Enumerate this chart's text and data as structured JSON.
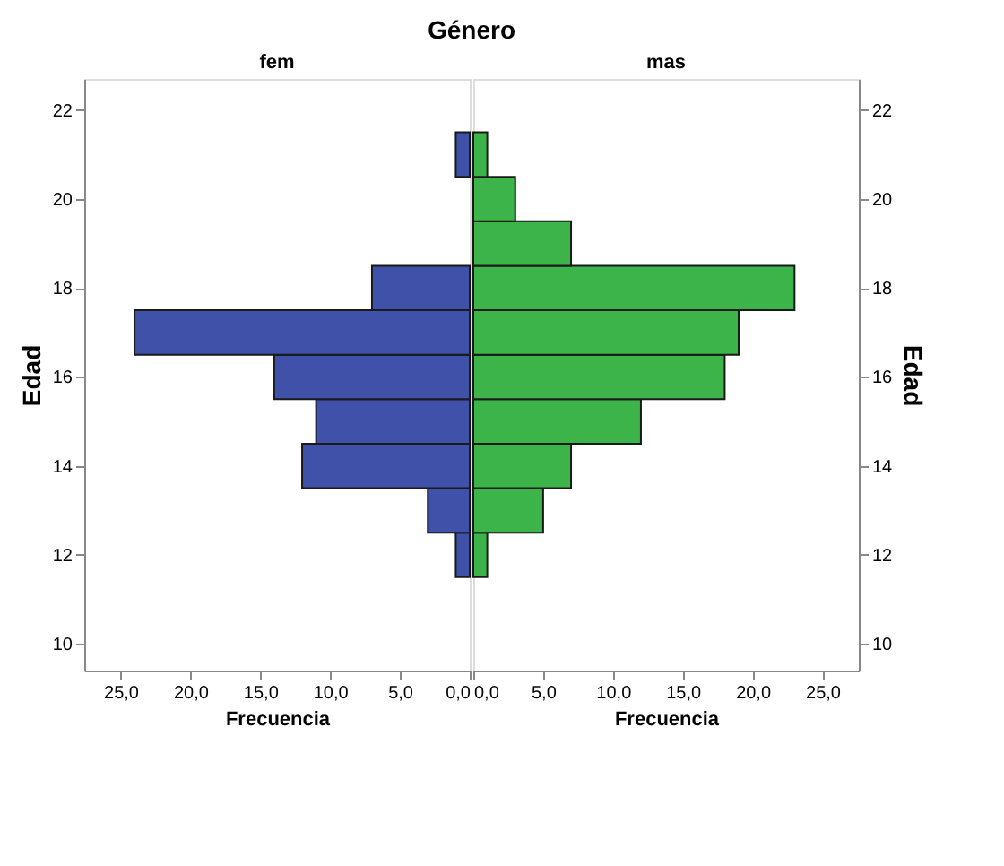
{
  "chart_data": [
    {
      "type": "histogram",
      "orientation": "horizontal",
      "title": "Género",
      "subtitle": "fem",
      "xlabel": "Frecuencia",
      "ylabel": "Edad",
      "bins": [
        11.5,
        12.5,
        13.5,
        14.5,
        15.5,
        16.5,
        17.5,
        18.5,
        19.5,
        20.5,
        21.5
      ],
      "values": [
        1,
        3,
        12,
        11,
        14,
        24,
        7,
        0,
        0,
        1
      ],
      "color": "#3f51a8",
      "xlim": [
        27.6,
        0
      ],
      "xticks": [
        {
          "value": 0,
          "label": "0,0"
        },
        {
          "value": 5,
          "label": "5,0"
        },
        {
          "value": 10,
          "label": "10,0"
        },
        {
          "value": 15,
          "label": "15,0"
        },
        {
          "value": 20,
          "label": "20,0"
        },
        {
          "value": 25,
          "label": "25,0"
        }
      ],
      "ylim": [
        9.4,
        22.7
      ],
      "yticks": [
        10,
        12,
        14,
        16,
        18,
        20,
        22
      ],
      "grid": false
    },
    {
      "type": "histogram",
      "orientation": "horizontal",
      "subtitle": "mas",
      "xlabel": "Frecuencia",
      "ylabel": "Edad",
      "bins": [
        11.5,
        12.5,
        13.5,
        14.5,
        15.5,
        16.5,
        17.5,
        18.5,
        19.5,
        20.5,
        21.5
      ],
      "values": [
        1,
        5,
        7,
        12,
        18,
        19,
        23,
        7,
        3,
        1
      ],
      "color": "#3cb44a",
      "xlim": [
        0,
        27.6
      ],
      "xticks": [
        {
          "value": 0,
          "label": "0,0"
        },
        {
          "value": 5,
          "label": "5,0"
        },
        {
          "value": 10,
          "label": "10,0"
        },
        {
          "value": 15,
          "label": "15,0"
        },
        {
          "value": 20,
          "label": "20,0"
        },
        {
          "value": 25,
          "label": "25,0"
        }
      ],
      "ylim": [
        9.4,
        22.7
      ],
      "yticks": [
        10,
        12,
        14,
        16,
        18,
        20,
        22
      ],
      "grid": false
    }
  ]
}
